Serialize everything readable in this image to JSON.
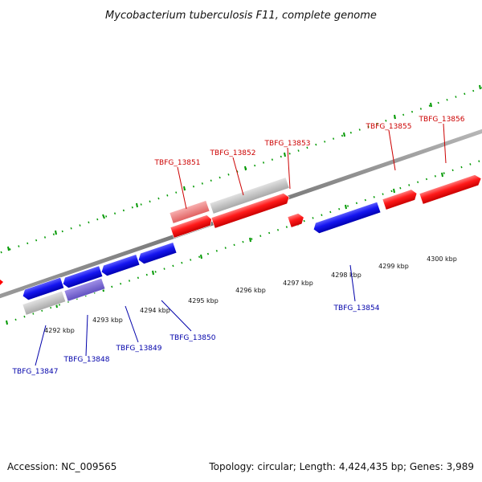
{
  "title": "Mycobacterium tuberculosis F11, complete genome",
  "footer": {
    "accession": "Accession: NC_009565",
    "stats": "Topology: circular; Length: 4,424,435 bp; Genes: 3,989"
  },
  "colors": {
    "forward_gene": "#ff0000",
    "reverse_gene": "#0000ee",
    "forward_label": "#cc0000",
    "reverse_label": "#0000aa",
    "pseudo_gene": "#c0c0c0",
    "tick": "#009900",
    "backbone": "#808080"
  },
  "tick_labels": [
    "4292 kbp",
    "4293 kbp",
    "4294 kbp",
    "4295 kbp",
    "4296 kbp",
    "4297 kbp",
    "4298 kbp",
    "4299 kbp",
    "4300 kbp"
  ],
  "forward_labels": [
    "TBFG_13851",
    "TBFG_13852",
    "TBFG_13853",
    "TBFG_13855",
    "TBFG_13856"
  ],
  "reverse_labels": [
    "TBFG_13847",
    "TBFG_13848",
    "TBFG_13849",
    "TBFG_13850",
    "TBFG_13854"
  ]
}
